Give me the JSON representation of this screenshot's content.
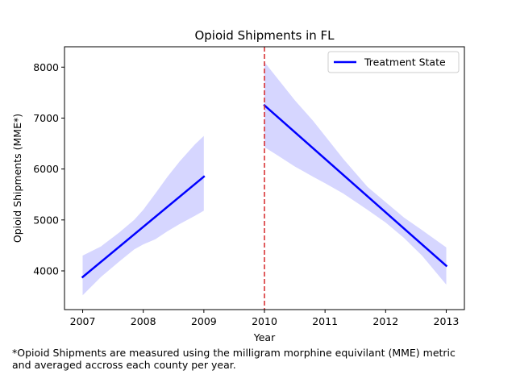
{
  "chart_data": {
    "type": "line",
    "title": "Opioid Shipments in FL",
    "xlabel": "Year",
    "ylabel": "Opioid Shipments (MME*)",
    "xlim": [
      2006.7,
      2013.3
    ],
    "ylim": [
      3240,
      8400
    ],
    "xticks": [
      2007,
      2008,
      2009,
      2010,
      2011,
      2012,
      2013
    ],
    "yticks": [
      4000,
      5000,
      6000,
      7000,
      8000
    ],
    "grid": false,
    "legend_position": "upper right",
    "treatment_year": 2010,
    "treatment_line_color": "#d62728",
    "series": [
      {
        "name": "Treatment State",
        "color": "#0000ff",
        "band_color": "#d6d6ff",
        "segments": [
          {
            "x": [
              2007,
              2009
            ],
            "y": [
              3880,
              5850
            ],
            "band_x": [
              2007.0,
              2007.3,
              2007.6,
              2007.85,
              2008.0,
              2008.2,
              2008.4,
              2008.6,
              2008.85,
              2009.0
            ],
            "band_upper": [
              4300,
              4480,
              4750,
              5000,
              5200,
              5520,
              5850,
              6150,
              6480,
              6650
            ],
            "band_lower": [
              3520,
              3880,
              4180,
              4420,
              4520,
              4620,
              4780,
              4920,
              5080,
              5180
            ]
          },
          {
            "x": [
              2010,
              2013
            ],
            "y": [
              7250,
              4100
            ],
            "band_x": [
              2010.0,
              2010.2,
              2010.5,
              2010.8,
              2011.0,
              2011.3,
              2011.7,
              2012.0,
              2012.3,
              2012.6,
              2013.0
            ],
            "band_upper": [
              8100,
              7800,
              7350,
              6950,
              6650,
              6200,
              5650,
              5350,
              5050,
              4800,
              4460
            ],
            "band_lower": [
              6430,
              6280,
              6050,
              5850,
              5720,
              5520,
              5200,
              4950,
              4650,
              4300,
              3730
            ]
          }
        ]
      }
    ]
  },
  "footnote": {
    "line1": "*Opioid Shipments are measured using the milligram morphine equivilant (MME) metric",
    "line2": "and averaged accross each county per year."
  }
}
